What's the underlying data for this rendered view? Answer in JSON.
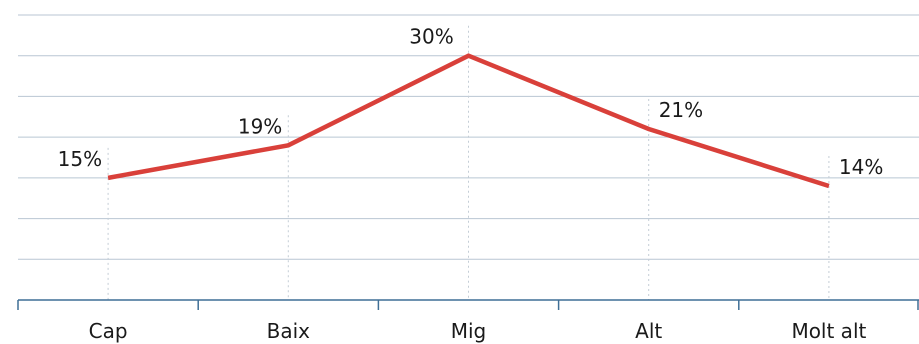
{
  "chart_data": {
    "type": "line",
    "title": "",
    "xlabel": "",
    "ylabel": "",
    "categories": [
      "Cap",
      "Baix",
      "Mig",
      "Alt",
      "Molt alt"
    ],
    "series": [
      {
        "values": [
          15,
          19,
          30,
          21,
          14
        ],
        "labels": [
          "15%",
          "19%",
          "30%",
          "21%",
          "14%"
        ],
        "color": "#d9403a"
      }
    ],
    "ylim": [
      0,
      35
    ],
    "grid": true,
    "legend": "none"
  }
}
